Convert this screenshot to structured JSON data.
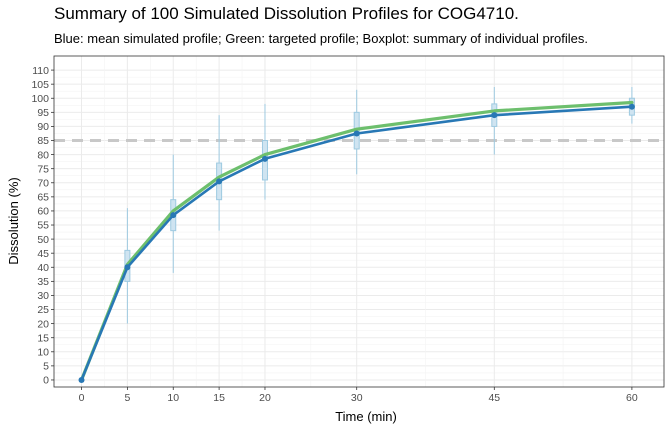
{
  "chart_data": {
    "type": "line",
    "title": "Summary of 100 Simulated Dissolution Profiles for COG4710.",
    "subtitle": "Blue: mean simulated profile; Green: targeted profile; Boxplot: summary of individual profiles.",
    "xlabel": "Time (min)",
    "ylabel": "Dissolution (%)",
    "x": [
      0,
      5,
      10,
      15,
      20,
      30,
      45,
      60
    ],
    "x_ticks": [
      "0",
      "5",
      "10",
      "15",
      "20",
      "30",
      "45",
      "60"
    ],
    "y_ticks": [
      "0",
      "5",
      "10",
      "15",
      "20",
      "25",
      "30",
      "35",
      "40",
      "45",
      "50",
      "55",
      "60",
      "65",
      "70",
      "75",
      "80",
      "85",
      "90",
      "95",
      "100",
      "105",
      "110"
    ],
    "xlim": [
      -3,
      63.5
    ],
    "ylim": [
      -2.5,
      115
    ],
    "grid": true,
    "reference_line": {
      "y": 85,
      "style": "dashed",
      "color": "#c8c8c8"
    },
    "series": [
      {
        "values": [
          0,
          41,
          60,
          72,
          80,
          89,
          95.5,
          98.5
        ],
        "color": "#6dbf6d"
      },
      {
        "values": [
          0,
          40,
          58.5,
          70.5,
          78.5,
          87.5,
          94,
          97
        ],
        "color": "#2878b5"
      }
    ],
    "boxplots": {
      "color": "#9ecae1",
      "items": [
        {
          "x": 5,
          "min": 20,
          "q1": 35,
          "median": 40,
          "q3": 46,
          "max": 61
        },
        {
          "x": 10,
          "min": 38,
          "q1": 53,
          "median": 59,
          "q3": 64,
          "max": 80
        },
        {
          "x": 15,
          "min": 53,
          "q1": 64,
          "median": 70,
          "q3": 77,
          "max": 94
        },
        {
          "x": 20,
          "min": 64,
          "q1": 71,
          "median": 79,
          "q3": 85,
          "max": 98
        },
        {
          "x": 30,
          "min": 73,
          "q1": 82,
          "median": 87,
          "q3": 95,
          "max": 103
        },
        {
          "x": 45,
          "min": 80,
          "q1": 90,
          "median": 94,
          "q3": 98,
          "max": 104
        },
        {
          "x": 60,
          "min": 91,
          "q1": 94,
          "median": 97,
          "q3": 100,
          "max": 104
        }
      ]
    }
  }
}
